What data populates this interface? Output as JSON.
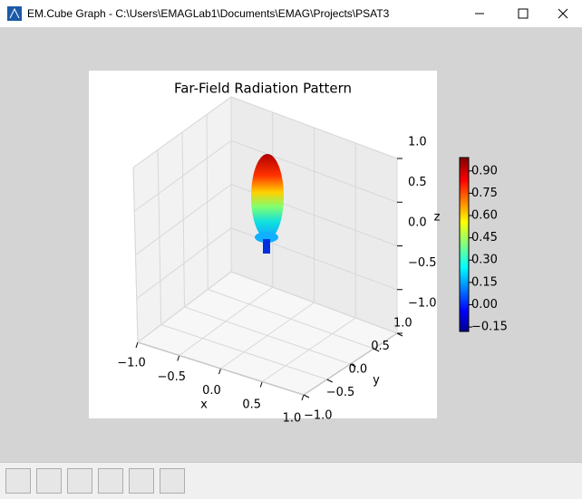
{
  "window": {
    "title": "EM.Cube Graph - C:\\Users\\EMAGLab1\\Documents\\EMAG\\Projects\\PSAT3"
  },
  "chart_data": {
    "type": "surface3d",
    "title": "Far-Field Radiation Pattern",
    "xlabel": "x",
    "ylabel": "y",
    "zlabel": "z",
    "xlim": [
      -1,
      1
    ],
    "ylim": [
      -1,
      1
    ],
    "zlim": [
      -1,
      1
    ],
    "xticks": [
      {
        "value": -1,
        "label": "−1.0"
      },
      {
        "value": -0.5,
        "label": "−0.5"
      },
      {
        "value": 0,
        "label": "0.0"
      },
      {
        "value": 0.5,
        "label": "0.5"
      },
      {
        "value": 1,
        "label": "1.0"
      }
    ],
    "yticks": [
      {
        "value": -1,
        "label": "−1.0"
      },
      {
        "value": -0.5,
        "label": "−0.5"
      },
      {
        "value": 0,
        "label": "0.0"
      },
      {
        "value": 0.5,
        "label": "0.5"
      },
      {
        "value": 1,
        "label": "1.0"
      }
    ],
    "zticks": [
      {
        "value": -1,
        "label": "−1.0"
      },
      {
        "value": -0.5,
        "label": "−0.5"
      },
      {
        "value": 0,
        "label": "0.0"
      },
      {
        "value": 0.5,
        "label": "0.5"
      },
      {
        "value": 1,
        "label": "1.0"
      }
    ],
    "grid": true,
    "colorbar": {
      "clim": [
        -0.18,
        0.99
      ],
      "ticks": [
        {
          "value": -0.15,
          "label": "−0.15"
        },
        {
          "value": 0,
          "label": "0.00"
        },
        {
          "value": 0.15,
          "label": "0.15"
        },
        {
          "value": 0.3,
          "label": "0.30"
        },
        {
          "value": 0.45,
          "label": "0.45"
        },
        {
          "value": 0.6,
          "label": "0.60"
        },
        {
          "value": 0.75,
          "label": "0.75"
        },
        {
          "value": 0.9,
          "label": "0.90"
        }
      ]
    }
  }
}
